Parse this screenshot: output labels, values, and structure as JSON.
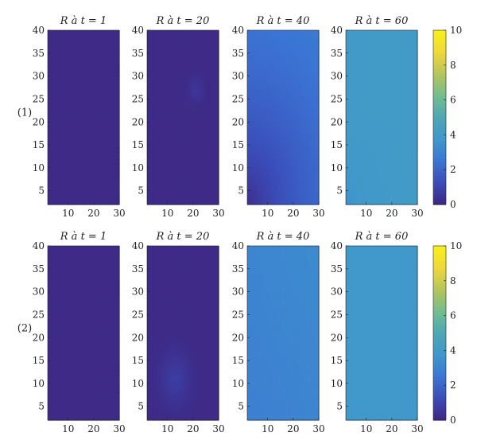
{
  "colors": {
    "bg": "#ffffff",
    "axis": "#222222",
    "colormap": [
      "#3e2680",
      "#3b4bb8",
      "#3b75d4",
      "#3f97cc",
      "#4ea6b4",
      "#73bd8f",
      "#b5c55b",
      "#f0d83a",
      "#f8f019"
    ]
  },
  "chart_data": [
    {
      "row_label": "(1)",
      "colorbar": {
        "ticks": [
          "0",
          "2",
          "4",
          "6",
          "8",
          "10"
        ],
        "range": [
          0,
          10
        ]
      },
      "panels": [
        {
          "type": "heatmap",
          "title": "R à t = 1",
          "xlim": [
            2,
            30
          ],
          "ylim": [
            2,
            40
          ],
          "xticks": [
            "10",
            "20",
            "30"
          ],
          "yticks": [
            "5",
            "10",
            "15",
            "20",
            "25",
            "30",
            "35",
            "40"
          ],
          "field": {
            "kind": "uniform",
            "base": 0.15
          }
        },
        {
          "type": "heatmap",
          "title": "R à t = 20",
          "xlim": [
            2,
            30
          ],
          "ylim": [
            2,
            40
          ],
          "xticks": [
            "10",
            "20",
            "30"
          ],
          "yticks": [
            "5",
            "10",
            "15",
            "20",
            "25",
            "30",
            "35",
            "40"
          ],
          "field": {
            "kind": "blob",
            "base": 0.15,
            "bx": 21,
            "by": 27,
            "br": 2,
            "amp": 0.4
          }
        },
        {
          "type": "heatmap",
          "title": "R à t = 40",
          "xlim": [
            2,
            30
          ],
          "ylim": [
            2,
            40
          ],
          "xticks": [
            "10",
            "20",
            "30"
          ],
          "yticks": [
            "5",
            "10",
            "15",
            "20",
            "25",
            "30",
            "35",
            "40"
          ],
          "field": {
            "kind": "radial",
            "base": 0.3,
            "max": 3.4,
            "scale": 32
          }
        },
        {
          "type": "heatmap",
          "title": "R à t = 60",
          "xlim": [
            2,
            30
          ],
          "ylim": [
            2,
            40
          ],
          "xticks": [
            "10",
            "20",
            "30"
          ],
          "yticks": [
            "5",
            "10",
            "15",
            "20",
            "25",
            "30",
            "35",
            "40"
          ],
          "field": {
            "kind": "radial",
            "base": 3.5,
            "max": 4.0,
            "scale": 6
          }
        }
      ]
    },
    {
      "row_label": "(2)",
      "colorbar": {
        "ticks": [
          "0",
          "2",
          "4",
          "6",
          "8",
          "10"
        ],
        "range": [
          0,
          10
        ]
      },
      "panels": [
        {
          "type": "heatmap",
          "title": "R à t = 1",
          "xlim": [
            2,
            30
          ],
          "ylim": [
            2,
            40
          ],
          "xticks": [
            "10",
            "20",
            "30"
          ],
          "yticks": [
            "5",
            "10",
            "15",
            "20",
            "25",
            "30",
            "35",
            "40"
          ],
          "field": {
            "kind": "uniform",
            "base": 0.15
          }
        },
        {
          "type": "heatmap",
          "title": "R à t = 20",
          "xlim": [
            2,
            30
          ],
          "ylim": [
            2,
            40
          ],
          "xticks": [
            "10",
            "20",
            "30"
          ],
          "yticks": [
            "5",
            "10",
            "15",
            "20",
            "25",
            "30",
            "35",
            "40"
          ],
          "field": {
            "kind": "blob",
            "base": 0.15,
            "bx": 13,
            "by": 11,
            "br": 4,
            "amp": 0.6
          }
        },
        {
          "type": "heatmap",
          "title": "R à t = 40",
          "xlim": [
            2,
            30
          ],
          "ylim": [
            2,
            40
          ],
          "xticks": [
            "10",
            "20",
            "30"
          ],
          "yticks": [
            "5",
            "10",
            "15",
            "20",
            "25",
            "30",
            "35",
            "40"
          ],
          "field": {
            "kind": "gradient",
            "base": 2.9,
            "max": 3.3
          }
        },
        {
          "type": "heatmap",
          "title": "R à t = 60",
          "xlim": [
            2,
            30
          ],
          "ylim": [
            2,
            40
          ],
          "xticks": [
            "10",
            "20",
            "30"
          ],
          "yticks": [
            "5",
            "10",
            "15",
            "20",
            "25",
            "30",
            "35",
            "40"
          ],
          "field": {
            "kind": "uniform",
            "base": 3.8
          }
        }
      ]
    }
  ]
}
